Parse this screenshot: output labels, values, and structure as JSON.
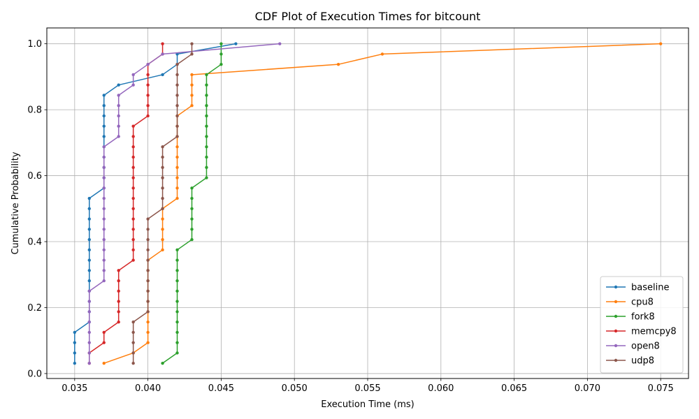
{
  "chart_data": {
    "type": "line",
    "title": "CDF Plot of Execution Times for bitcount",
    "xlabel": "Execution Time (ms)",
    "ylabel": "Cumulative Probability",
    "xlim": [
      0.0331,
      0.0769
    ],
    "ylim": [
      -0.015,
      1.048
    ],
    "xticks": [
      0.035,
      0.04,
      0.045,
      0.05,
      0.055,
      0.06,
      0.065,
      0.07,
      0.075
    ],
    "xtick_labels": [
      "0.035",
      "0.040",
      "0.045",
      "0.050",
      "0.055",
      "0.060",
      "0.065",
      "0.070",
      "0.075"
    ],
    "yticks": [
      0.0,
      0.2,
      0.4,
      0.6,
      0.8,
      1.0
    ],
    "ytick_labels": [
      "0.0",
      "0.2",
      "0.4",
      "0.6",
      "0.8",
      "1.0"
    ],
    "grid": true,
    "legend_position": "lower-right",
    "series": [
      {
        "name": "baseline",
        "color": "#1f77b4",
        "x": [
          0.035,
          0.035,
          0.035,
          0.035,
          0.036,
          0.036,
          0.036,
          0.036,
          0.036,
          0.036,
          0.036,
          0.036,
          0.036,
          0.036,
          0.036,
          0.036,
          0.036,
          0.037,
          0.037,
          0.037,
          0.037,
          0.037,
          0.037,
          0.037,
          0.037,
          0.037,
          0.037,
          0.038,
          0.041,
          0.042,
          0.042,
          0.046
        ]
      },
      {
        "name": "cpu8",
        "color": "#ff7f0e",
        "x": [
          0.037,
          0.039,
          0.04,
          0.04,
          0.04,
          0.04,
          0.04,
          0.04,
          0.04,
          0.04,
          0.04,
          0.041,
          0.041,
          0.041,
          0.041,
          0.041,
          0.042,
          0.042,
          0.042,
          0.042,
          0.042,
          0.042,
          0.042,
          0.042,
          0.042,
          0.043,
          0.043,
          0.043,
          0.043,
          0.053,
          0.056,
          0.075
        ]
      },
      {
        "name": "fork8",
        "color": "#2ca02c",
        "x": [
          0.041,
          0.042,
          0.042,
          0.042,
          0.042,
          0.042,
          0.042,
          0.042,
          0.042,
          0.042,
          0.042,
          0.042,
          0.043,
          0.043,
          0.043,
          0.043,
          0.043,
          0.043,
          0.044,
          0.044,
          0.044,
          0.044,
          0.044,
          0.044,
          0.044,
          0.044,
          0.044,
          0.044,
          0.044,
          0.045,
          0.045,
          0.045
        ]
      },
      {
        "name": "memcpy8",
        "color": "#d62728",
        "x": [
          0.036,
          0.036,
          0.037,
          0.037,
          0.038,
          0.038,
          0.038,
          0.038,
          0.038,
          0.038,
          0.039,
          0.039,
          0.039,
          0.039,
          0.039,
          0.039,
          0.039,
          0.039,
          0.039,
          0.039,
          0.039,
          0.039,
          0.039,
          0.039,
          0.04,
          0.04,
          0.04,
          0.04,
          0.04,
          0.04,
          0.041,
          0.041
        ]
      },
      {
        "name": "open8",
        "color": "#9467bd",
        "x": [
          0.036,
          0.036,
          0.036,
          0.036,
          0.036,
          0.036,
          0.036,
          0.036,
          0.037,
          0.037,
          0.037,
          0.037,
          0.037,
          0.037,
          0.037,
          0.037,
          0.037,
          0.037,
          0.037,
          0.037,
          0.037,
          0.037,
          0.038,
          0.038,
          0.038,
          0.038,
          0.038,
          0.039,
          0.039,
          0.04,
          0.041,
          0.049
        ]
      },
      {
        "name": "udp8",
        "color": "#8c564b",
        "x": [
          0.039,
          0.039,
          0.039,
          0.039,
          0.039,
          0.04,
          0.04,
          0.04,
          0.04,
          0.04,
          0.04,
          0.04,
          0.04,
          0.04,
          0.04,
          0.041,
          0.041,
          0.041,
          0.041,
          0.041,
          0.041,
          0.041,
          0.042,
          0.042,
          0.042,
          0.042,
          0.042,
          0.042,
          0.042,
          0.042,
          0.043,
          0.043
        ]
      }
    ]
  }
}
